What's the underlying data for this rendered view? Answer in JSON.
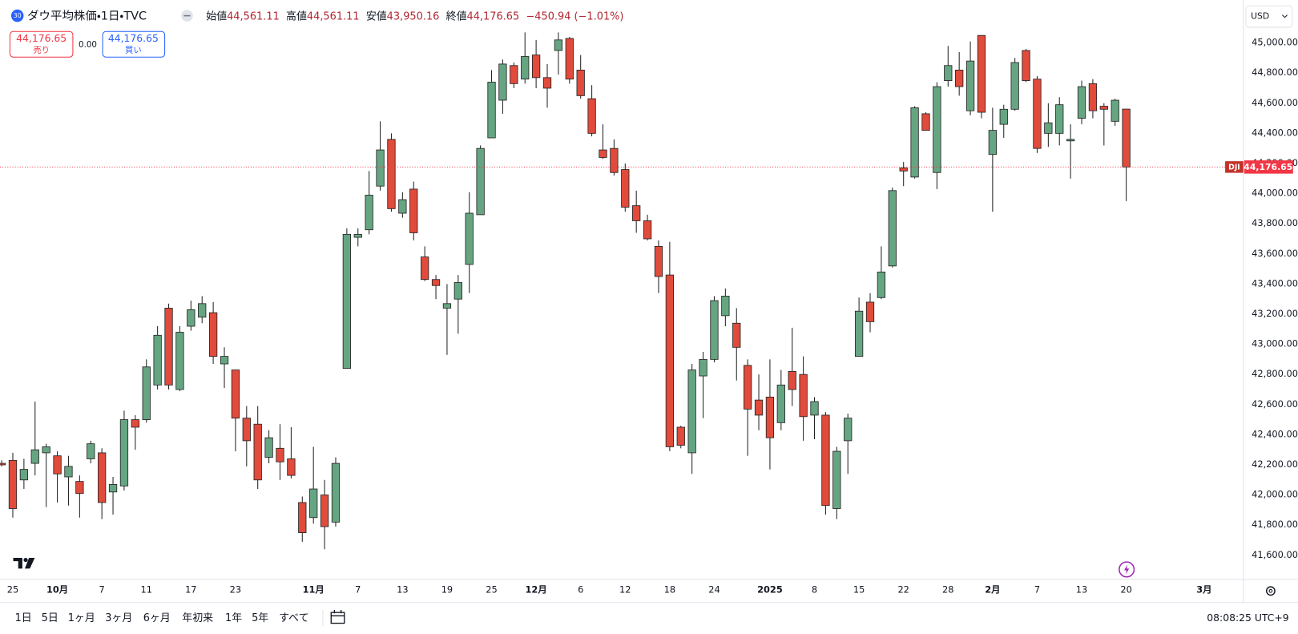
{
  "header": {
    "badge": "30",
    "title": "ダウ平均株価・1日・TVC",
    "ohlc": [
      {
        "label": "始値",
        "value": "44,561.11"
      },
      {
        "label": "高値",
        "value": "44,561.11"
      },
      {
        "label": "安値",
        "value": "43,950.16"
      },
      {
        "label": "終値",
        "value": "44,176.65"
      }
    ],
    "change": "−450.94 (−1.01%)"
  },
  "trade": {
    "sell_price": "44,176.65",
    "sell_label": "売り",
    "spread": "0.00",
    "buy_price": "44,176.65",
    "buy_label": "買い"
  },
  "currency": "USD",
  "price_label": {
    "symbol": "DJI",
    "value": "44,176.65"
  },
  "ranges": [
    "1日",
    "5日",
    "1ヶ月",
    "3ヶ月",
    "6ヶ月",
    "年初来",
    "1年",
    "5年",
    "すべて"
  ],
  "clock": "08:08:25 UTC+9",
  "chart_data": {
    "type": "candlestick",
    "up_color": "#66a582",
    "down_color": "#e04b3c",
    "grid": false,
    "open": [
      42210,
      42230,
      42100,
      42210,
      42280,
      42260,
      42120,
      42090,
      42240,
      42280,
      42020,
      42060,
      42500,
      42500,
      42730,
      43240,
      42700,
      43120,
      43180,
      43210,
      42870,
      42830,
      42510,
      42470,
      42250,
      42310,
      42240,
      41950,
      41850,
      42000,
      41820,
      42840,
      43710,
      43760,
      44050,
      44360,
      43870,
      44030,
      43580,
      43430,
      43240,
      43300,
      43530,
      43860,
      44370,
      44620,
      44850,
      44760,
      44920,
      44770,
      44950,
      45030,
      44820,
      44630,
      44290,
      44300,
      44160,
      43920,
      43820,
      43650,
      43460,
      42450,
      42280,
      42790,
      42900,
      43190,
      43140,
      42860,
      42630,
      42650,
      42480,
      42820,
      42800,
      42530,
      42530,
      41910,
      42360,
      42920,
      43280,
      43310,
      43520,
      44170,
      44110,
      44530,
      44140,
      44750,
      44820,
      44550,
      45050,
      44260,
      44460,
      44560,
      44950,
      44760,
      44400,
      44400,
      44350,
      44500,
      44730,
      44580,
      44480,
      44561.11
    ],
    "high": [
      42230,
      42280,
      42240,
      42620,
      42340,
      42290,
      42260,
      42130,
      42360,
      42310,
      42120,
      42560,
      42530,
      42900,
      43120,
      43270,
      43120,
      43290,
      43320,
      43280,
      42980,
      42830,
      42590,
      42590,
      42430,
      42470,
      42450,
      41990,
      42320,
      42100,
      42250,
      43770,
      43770,
      44150,
      44480,
      44400,
      44010,
      44080,
      43650,
      43460,
      43400,
      43460,
      44010,
      44320,
      44820,
      44890,
      44870,
      45070,
      45020,
      44860,
      45070,
      45040,
      44920,
      44720,
      44460,
      44360,
      44200,
      44020,
      43860,
      43690,
      43680,
      42460,
      42870,
      42950,
      43320,
      43370,
      43240,
      42900,
      42800,
      42900,
      42830,
      43110,
      42920,
      42650,
      42550,
      42320,
      42540,
      43310,
      43340,
      43650,
      44040,
      44210,
      44580,
      44540,
      44740,
      44980,
      44940,
      45010,
      45050,
      44570,
      44590,
      44900,
      44960,
      44780,
      44600,
      44640,
      44460,
      44750,
      44760,
      44600,
      44630,
      44561.11
    ],
    "low": [
      42190,
      41850,
      42040,
      42130,
      41920,
      41950,
      41930,
      41850,
      42210,
      41840,
      41870,
      42030,
      42300,
      42480,
      42700,
      42700,
      42690,
      43090,
      43140,
      42870,
      42710,
      42290,
      42190,
      42040,
      42210,
      42100,
      42110,
      41690,
      41810,
      41640,
      41790,
      42840,
      43650,
      43730,
      44020,
      43880,
      43840,
      43690,
      43420,
      43300,
      42930,
      43070,
      43340,
      43860,
      44370,
      44530,
      44700,
      44730,
      44700,
      44570,
      44790,
      44730,
      44630,
      44380,
      44230,
      44120,
      43880,
      43740,
      43690,
      43340,
      42290,
      42310,
      42140,
      42510,
      42880,
      43120,
      42760,
      42260,
      42430,
      42170,
      42430,
      42590,
      42360,
      42370,
      41870,
      41840,
      42140,
      42920,
      43080,
      43300,
      43510,
      44050,
      44100,
      44420,
      44030,
      44710,
      44650,
      44520,
      44500,
      43880,
      44370,
      44550,
      44740,
      44270,
      44310,
      44320,
      44100,
      44460,
      44500,
      44320,
      44450,
      43950.16
    ],
    "close": [
      42200,
      41910,
      42170,
      42300,
      42320,
      42140,
      42190,
      42010,
      42340,
      41950,
      42070,
      42500,
      42450,
      42850,
      43060,
      42730,
      43080,
      43230,
      43270,
      42920,
      42920,
      42510,
      42360,
      42100,
      42380,
      42220,
      42130,
      41750,
      42040,
      41790,
      42210,
      43730,
      43730,
      43990,
      44290,
      43900,
      43960,
      43740,
      43430,
      43390,
      43270,
      43410,
      43870,
      44300,
      44740,
      44860,
      44730,
      44910,
      44770,
      44700,
      45020,
      44760,
      44650,
      44400,
      44240,
      44140,
      43910,
      43820,
      43700,
      43450,
      42320,
      42330,
      42830,
      42900,
      43290,
      43320,
      42980,
      42570,
      42530,
      42380,
      42730,
      42700,
      42520,
      42620,
      41930,
      42290,
      42510,
      43220,
      43150,
      43480,
      44020,
      44150,
      44570,
      44420,
      44710,
      44850,
      44710,
      44880,
      44540,
      44420,
      44560,
      44870,
      44750,
      44300,
      44470,
      44590,
      44360,
      44710,
      44550,
      44560,
      44620,
      44176.65
    ],
    "xlim": [
      -0.15,
      111.52
    ],
    "xticks": [
      {
        "value": 1,
        "label": "25"
      },
      {
        "value": 5,
        "label": "10月"
      },
      {
        "value": 9,
        "label": "7"
      },
      {
        "value": 13,
        "label": "11"
      },
      {
        "value": 17,
        "label": "17"
      },
      {
        "value": 21,
        "label": "23"
      },
      {
        "value": 28,
        "label": "11月"
      },
      {
        "value": 32,
        "label": "7"
      },
      {
        "value": 36,
        "label": "13"
      },
      {
        "value": 40,
        "label": "19"
      },
      {
        "value": 44,
        "label": "25"
      },
      {
        "value": 48,
        "label": "12月"
      },
      {
        "value": 52,
        "label": "6"
      },
      {
        "value": 56,
        "label": "12"
      },
      {
        "value": 60,
        "label": "18"
      },
      {
        "value": 64,
        "label": "24"
      },
      {
        "value": 69,
        "label": "2025"
      },
      {
        "value": 73,
        "label": "8"
      },
      {
        "value": 77,
        "label": "15"
      },
      {
        "value": 81,
        "label": "22"
      },
      {
        "value": 85,
        "label": "28"
      },
      {
        "value": 89,
        "label": "2月"
      },
      {
        "value": 93,
        "label": "7"
      },
      {
        "value": 97,
        "label": "13"
      },
      {
        "value": 101,
        "label": "20"
      },
      {
        "value": 108,
        "label": "3月"
      }
    ],
    "ylim": [
      41440,
      45285
    ],
    "yticks": [
      {
        "value": 41600,
        "label": "41,600.00"
      },
      {
        "value": 41800,
        "label": "41,800.00"
      },
      {
        "value": 42000,
        "label": "42,000.00"
      },
      {
        "value": 42200,
        "label": "42,200.00"
      },
      {
        "value": 42400,
        "label": "42,400.00"
      },
      {
        "value": 42600,
        "label": "42,600.00"
      },
      {
        "value": 42800,
        "label": "42,800.00"
      },
      {
        "value": 43000,
        "label": "43,000.00"
      },
      {
        "value": 43200,
        "label": "43,200.00"
      },
      {
        "value": 43400,
        "label": "43,400.00"
      },
      {
        "value": 43600,
        "label": "43,600.00"
      },
      {
        "value": 43800,
        "label": "43,800.00"
      },
      {
        "value": 44000,
        "label": "44,000.00"
      },
      {
        "value": 44200,
        "label": "44,200.00"
      },
      {
        "value": 44400,
        "label": "44,400.00"
      },
      {
        "value": 44600,
        "label": "44,600.00"
      },
      {
        "value": 44800,
        "label": "44,800.00"
      },
      {
        "value": 45000,
        "label": "45,000.00"
      }
    ]
  }
}
